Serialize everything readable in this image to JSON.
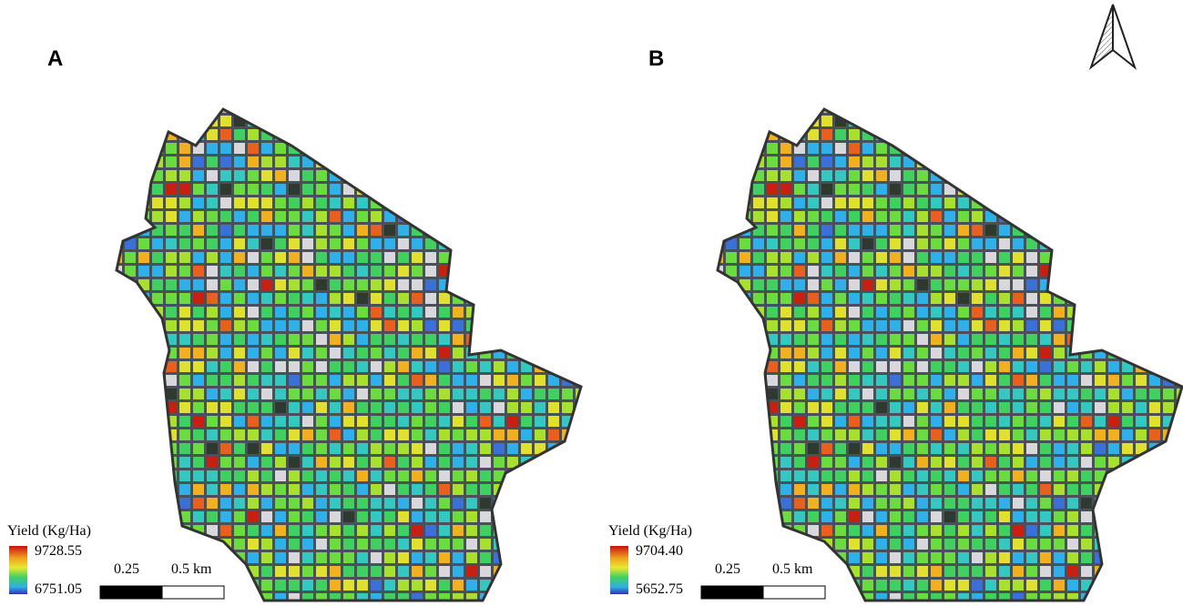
{
  "panels": [
    {
      "label": "A",
      "legend": {
        "title": "Yield (Kg/Ha)",
        "max": "9728.55",
        "min": "6751.05"
      },
      "scale": {
        "mid": "0.25",
        "end": "0.5 km"
      }
    },
    {
      "label": "B",
      "legend": {
        "title": "Yield (Kg/Ha)",
        "max": "9704.40",
        "min": "5652.75"
      },
      "scale": {
        "mid": "0.25",
        "end": "0.5 km"
      }
    }
  ]
}
